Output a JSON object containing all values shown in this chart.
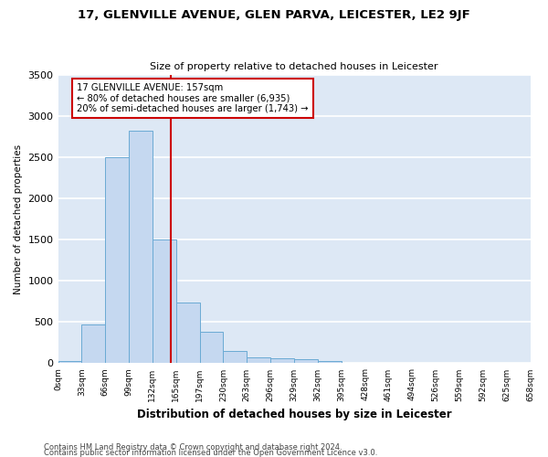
{
  "title": "17, GLENVILLE AVENUE, GLEN PARVA, LEICESTER, LE2 9JF",
  "subtitle": "Size of property relative to detached houses in Leicester",
  "xlabel": "Distribution of detached houses by size in Leicester",
  "ylabel": "Number of detached properties",
  "bar_heights": [
    30,
    470,
    2500,
    2820,
    1500,
    740,
    380,
    145,
    75,
    55,
    45,
    30,
    0,
    0,
    0,
    0,
    0,
    0,
    0,
    0
  ],
  "bin_labels": [
    "0sqm",
    "33sqm",
    "66sqm",
    "99sqm",
    "132sqm",
    "165sqm",
    "197sqm",
    "230sqm",
    "263sqm",
    "296sqm",
    "329sqm",
    "362sqm",
    "395sqm",
    "428sqm",
    "461sqm",
    "494sqm",
    "526sqm",
    "559sqm",
    "592sqm",
    "625sqm",
    "658sqm"
  ],
  "bar_color": "#c5d8f0",
  "bar_edge_color": "#6aaad4",
  "vline_color": "#cc0000",
  "annotation_text": "17 GLENVILLE AVENUE: 157sqm\n← 80% of detached houses are smaller (6,935)\n20% of semi-detached houses are larger (1,743) →",
  "annotation_box_color": "#ffffff",
  "annotation_box_edge": "#cc0000",
  "ylim": [
    0,
    3500
  ],
  "yticks": [
    0,
    500,
    1000,
    1500,
    2000,
    2500,
    3000,
    3500
  ],
  "background_color": "#dde8f5",
  "fig_background": "#ffffff",
  "grid_color": "#ffffff",
  "footnote1": "Contains HM Land Registry data © Crown copyright and database right 2024.",
  "footnote2": "Contains public sector information licensed under the Open Government Licence v3.0."
}
